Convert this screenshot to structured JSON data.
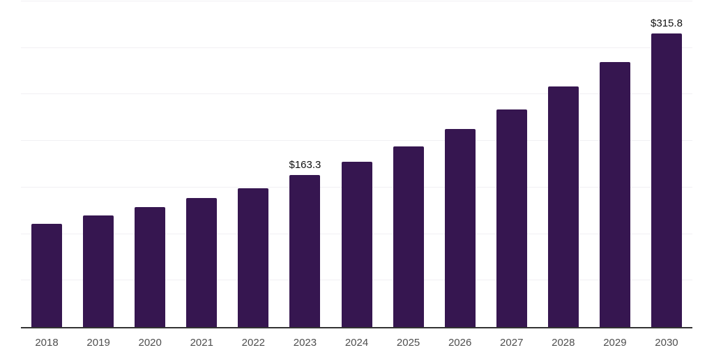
{
  "chart_data": {
    "type": "bar",
    "title": "",
    "xlabel": "",
    "ylabel": "",
    "categories": [
      "2018",
      "2019",
      "2020",
      "2021",
      "2022",
      "2023",
      "2024",
      "2025",
      "2026",
      "2027",
      "2028",
      "2029",
      "2030"
    ],
    "values": [
      111.2,
      120.0,
      128.7,
      138.9,
      149.5,
      163.3,
      178.0,
      194.3,
      212.9,
      234.0,
      258.4,
      284.9,
      315.8
    ],
    "point_labels": [
      "",
      "",
      "",
      "",
      "",
      "$163.3",
      "",
      "",
      "",
      "",
      "",
      "",
      "$315.8"
    ],
    "ylim": [
      0,
      350
    ],
    "gridline_step": 50,
    "grid": "horizontal",
    "y_axis_tick_labels_visible": false,
    "legend_position": "none",
    "colors": {
      "bar": "#361650",
      "axis_line": "#333333",
      "gridline": "#f1f0f3",
      "value_label": "#111111",
      "tick_label": "#4f4f4f",
      "background": "#ffffff"
    }
  }
}
